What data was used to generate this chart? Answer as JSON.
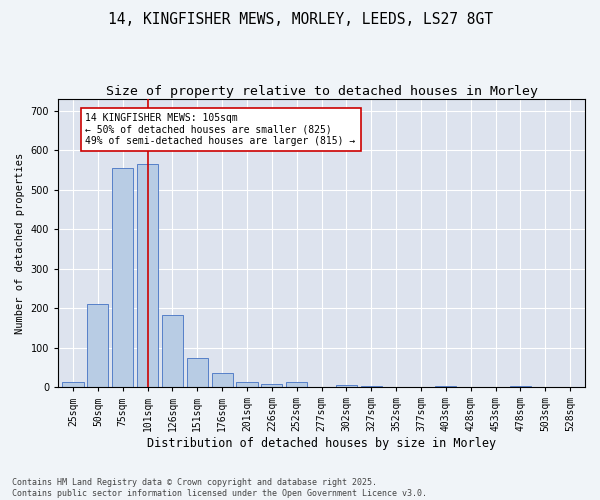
{
  "title1": "14, KINGFISHER MEWS, MORLEY, LEEDS, LS27 8GT",
  "title2": "Size of property relative to detached houses in Morley",
  "xlabel": "Distribution of detached houses by size in Morley",
  "ylabel": "Number of detached properties",
  "categories": [
    "25sqm",
    "50sqm",
    "75sqm",
    "101sqm",
    "126sqm",
    "151sqm",
    "176sqm",
    "201sqm",
    "226sqm",
    "252sqm",
    "277sqm",
    "302sqm",
    "327sqm",
    "352sqm",
    "377sqm",
    "403sqm",
    "428sqm",
    "453sqm",
    "478sqm",
    "503sqm",
    "528sqm"
  ],
  "values": [
    13,
    212,
    555,
    565,
    182,
    75,
    35,
    12,
    7,
    13,
    0,
    5,
    3,
    0,
    0,
    3,
    0,
    0,
    2,
    0,
    0
  ],
  "bar_color": "#b8cce4",
  "bar_edge_color": "#4472c4",
  "vline_x_index": 3,
  "vline_color": "#cc0000",
  "annotation_text": "14 KINGFISHER MEWS: 105sqm\n← 50% of detached houses are smaller (825)\n49% of semi-detached houses are larger (815) →",
  "annotation_box_facecolor": "#ffffff",
  "annotation_box_edgecolor": "#cc0000",
  "ylim": [
    0,
    730
  ],
  "yticks": [
    0,
    100,
    200,
    300,
    400,
    500,
    600,
    700
  ],
  "footnote": "Contains HM Land Registry data © Crown copyright and database right 2025.\nContains public sector information licensed under the Open Government Licence v3.0.",
  "fig_facecolor": "#f0f4f8",
  "plot_facecolor": "#dde3ee",
  "grid_color": "#ffffff",
  "title1_fontsize": 10.5,
  "title2_fontsize": 9.5,
  "xlabel_fontsize": 8.5,
  "ylabel_fontsize": 7.5,
  "tick_fontsize": 7,
  "footnote_fontsize": 6
}
